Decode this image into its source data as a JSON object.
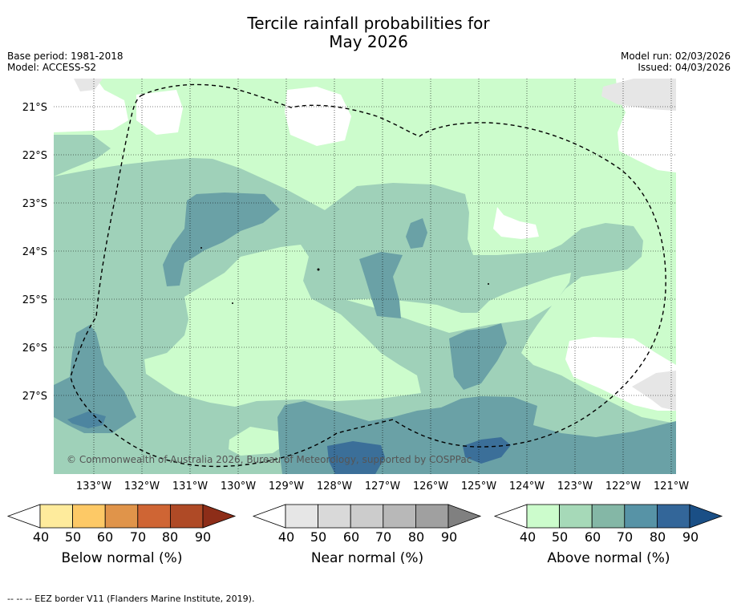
{
  "title": {
    "line1": "Tercile rainfall probabilities for",
    "line2": "May 2026"
  },
  "meta": {
    "base_period": "Base period: 1981-2018",
    "model": "Model: ACCESS-S2",
    "model_run": "Model run: 02/03/2026",
    "issued": "Issued: 04/03/2026"
  },
  "map": {
    "lat_labels": [
      "21°S",
      "22°S",
      "23°S",
      "24°S",
      "25°S",
      "26°S",
      "27°S"
    ],
    "lon_labels": [
      "133°W",
      "132°W",
      "131°W",
      "130°W",
      "129°W",
      "128°W",
      "127°W",
      "126°W",
      "125°W",
      "124°W",
      "123°W",
      "122°W",
      "121°W"
    ],
    "copyright": "© Commonwealth of Australia 2026, Bureau of Meteorology, supported by COSPPac",
    "colors": {
      "above_40": "#ccfccc",
      "above_50": "#9fd1b9",
      "above_60": "#80b7aa",
      "above_70": "#6aa1a6",
      "above_80": "#4d85a0",
      "above_90": "#3b6f99",
      "near": "#e6e6e6",
      "white": "#ffffff"
    }
  },
  "colorbars": {
    "below": {
      "label": "Below normal (%)",
      "ticks": [
        "40",
        "50",
        "60",
        "70",
        "80",
        "90"
      ],
      "colors": [
        "#ffffff",
        "#feeb9c",
        "#fdc966",
        "#e0944a",
        "#cf6534",
        "#af4a26",
        "#8d2d18"
      ]
    },
    "near": {
      "label": "Near normal (%)",
      "ticks": [
        "40",
        "50",
        "60",
        "70",
        "80",
        "90"
      ],
      "colors": [
        "#ffffff",
        "#e6e6e6",
        "#d9d9d9",
        "#cccccc",
        "#b8b8b8",
        "#a0a0a0",
        "#808080"
      ]
    },
    "above": {
      "label": "Above normal (%)",
      "ticks": [
        "40",
        "50",
        "60",
        "70",
        "80",
        "90"
      ],
      "colors": [
        "#ffffff",
        "#ccfccc",
        "#a6d9b8",
        "#84b7a6",
        "#5793a6",
        "#336699",
        "#1a4f86"
      ]
    }
  },
  "footnote": "-- -- -- EEZ border V11 (Flanders Marine Institute, 2019)."
}
